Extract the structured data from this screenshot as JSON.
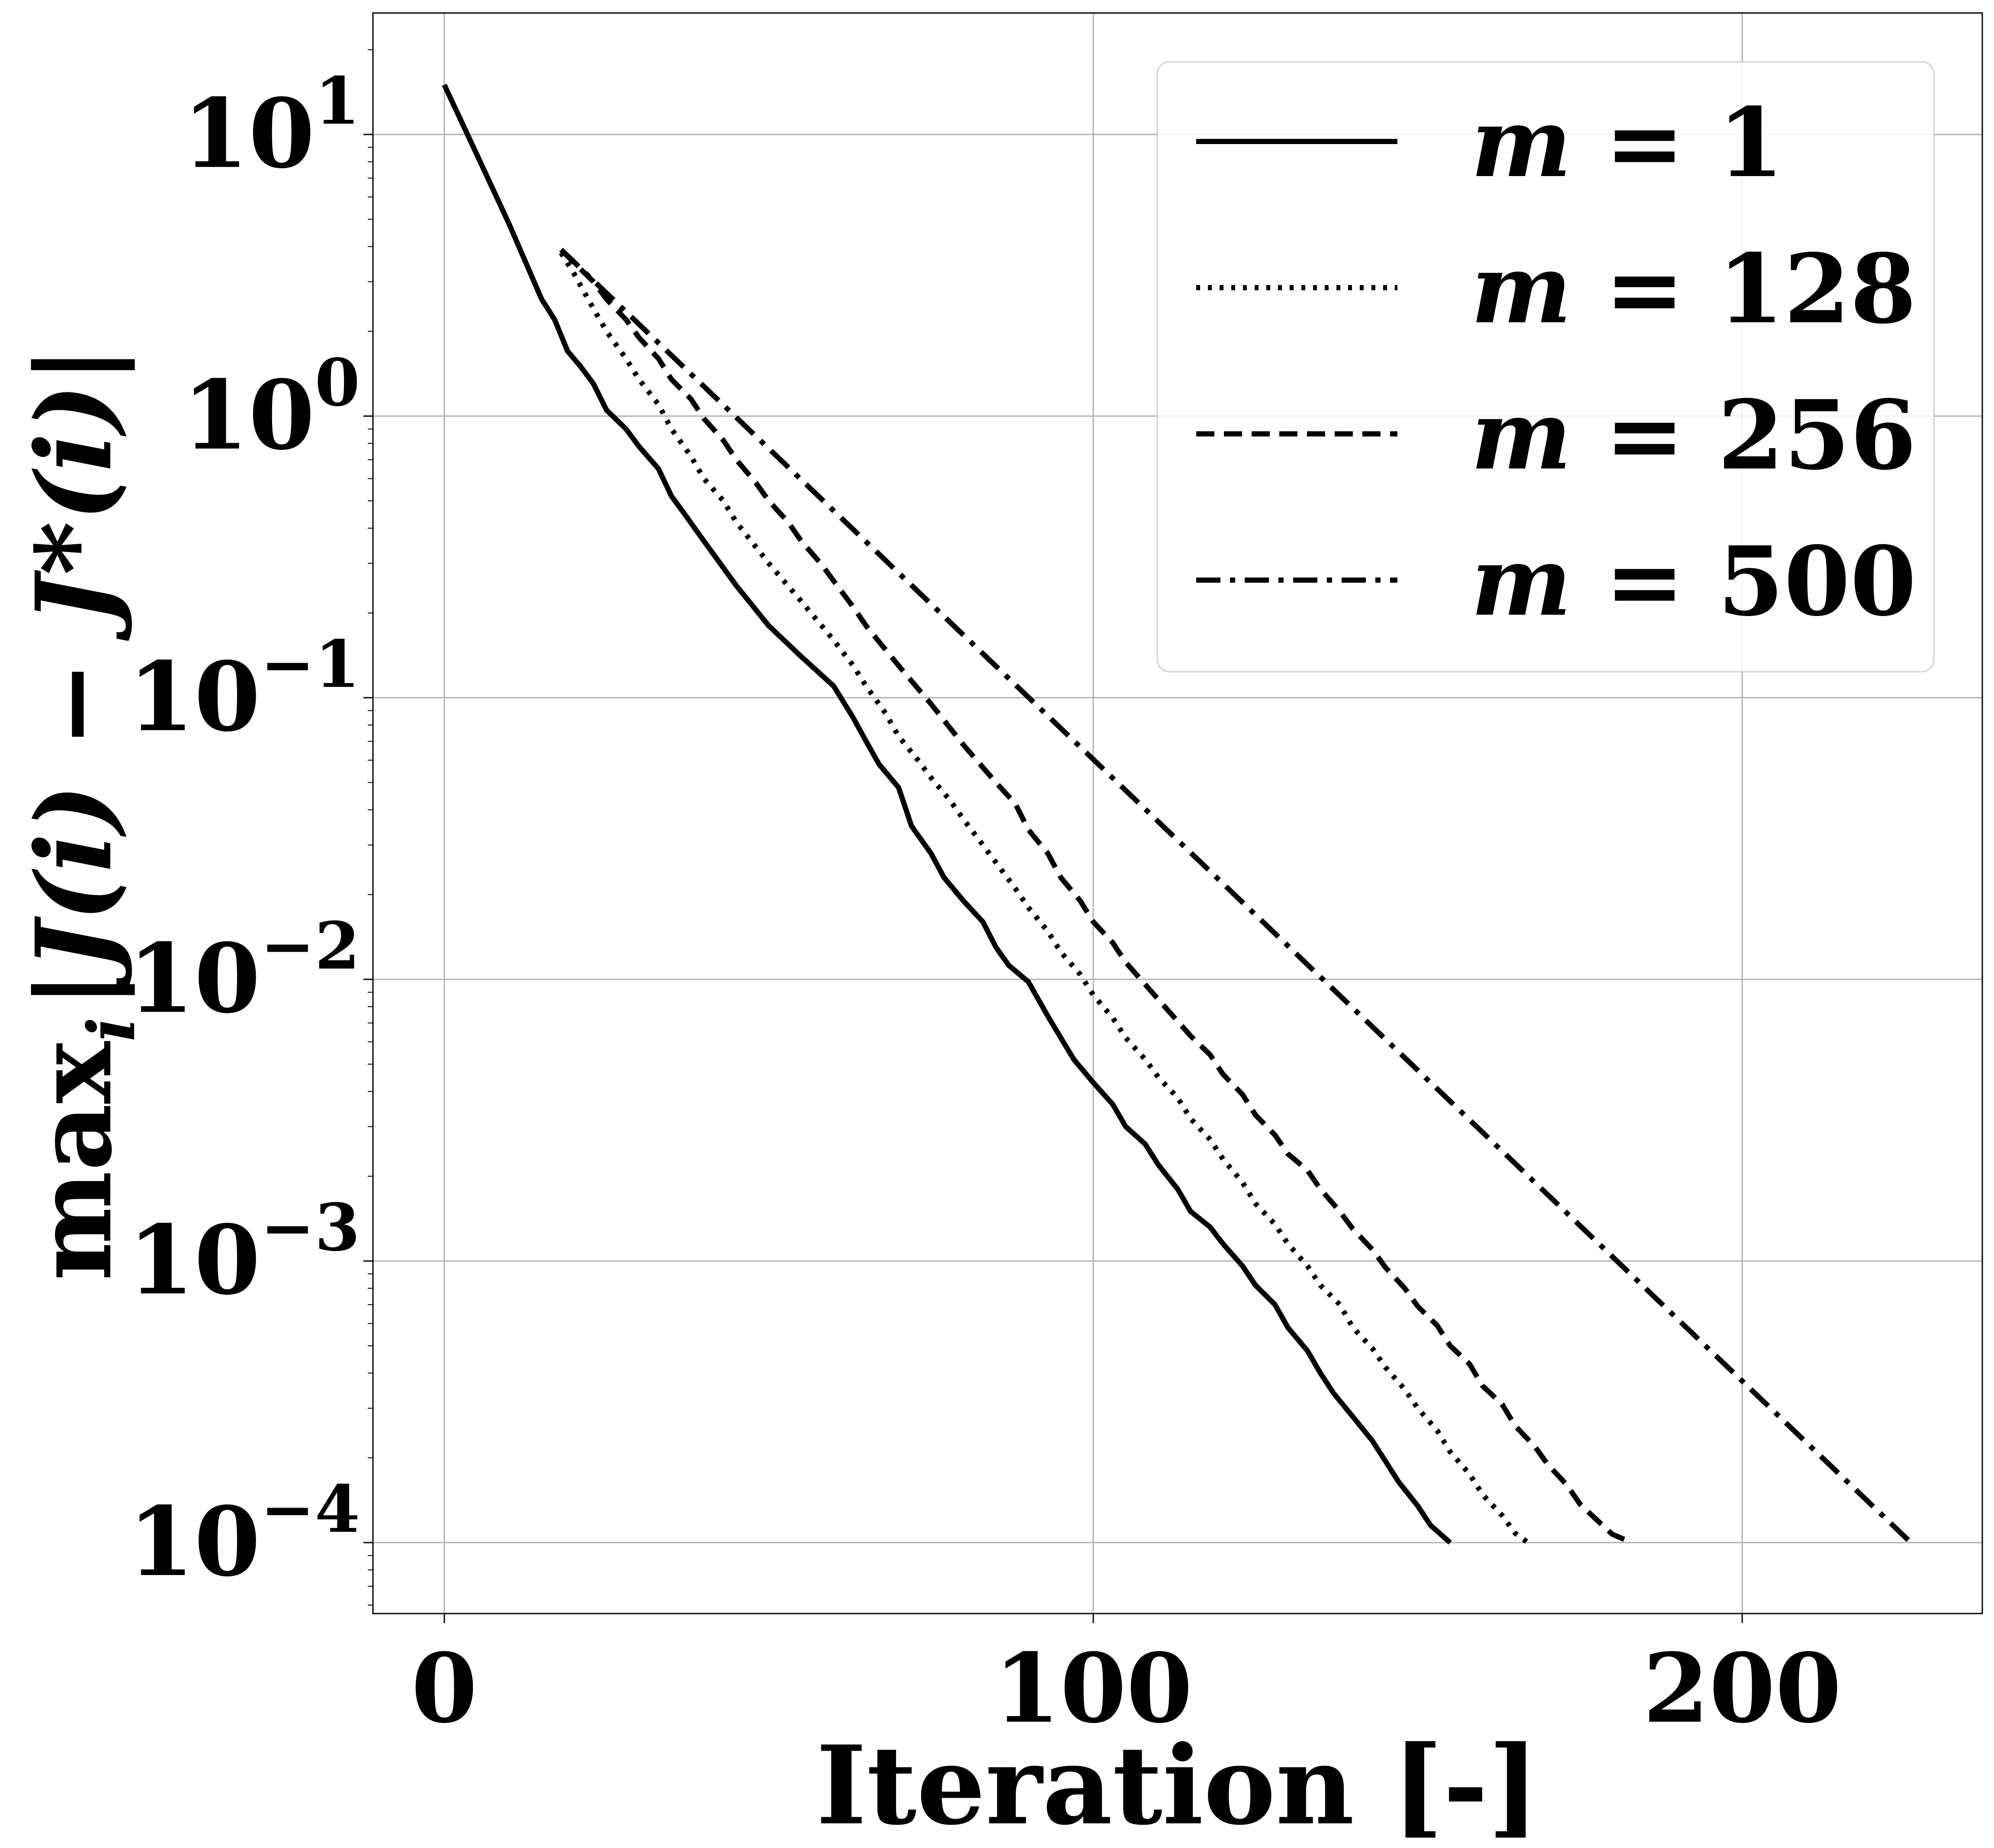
{
  "chart_data": {
    "type": "line",
    "xlabel": "Iteration [-]",
    "ylabel": "max_i |J(i) − J*(i)|",
    "ylabel_parts": {
      "prefix": "max",
      "sub": "i",
      "expr": "|J(i) − J*(i)|"
    },
    "x_range": [
      -11,
      237
    ],
    "y_scale": "log",
    "y_range": [
      5.6e-05,
      27
    ],
    "x_ticks": [
      {
        "value": 0,
        "label": "0"
      },
      {
        "value": 100,
        "label": "100"
      },
      {
        "value": 200,
        "label": "200"
      }
    ],
    "y_ticks": [
      {
        "value": 10,
        "base": "10",
        "exp": "1"
      },
      {
        "value": 1,
        "base": "10",
        "exp": "0"
      },
      {
        "value": 0.1,
        "base": "10",
        "exp": "−1"
      },
      {
        "value": 0.01,
        "base": "10",
        "exp": "−2"
      },
      {
        "value": 0.001,
        "base": "10",
        "exp": "−3"
      },
      {
        "value": 0.0001,
        "base": "10",
        "exp": "−4"
      }
    ],
    "grid": true,
    "legend_position": "top-right",
    "series": [
      {
        "name": "m = 1",
        "legend_var": "m",
        "legend_rest": " = 1",
        "style": "solid",
        "x": [
          0,
          5,
          10,
          15,
          17,
          19,
          21,
          23,
          25,
          28,
          30,
          33,
          35,
          37,
          40,
          45,
          50,
          55,
          60,
          63,
          65,
          67,
          70,
          72,
          75,
          77,
          80,
          83,
          85,
          87,
          90,
          93,
          95,
          97,
          100,
          103,
          105,
          108,
          110,
          113,
          115,
          118,
          120,
          123,
          125,
          128,
          130,
          133,
          135,
          137,
          140,
          143,
          145,
          147,
          150,
          152,
          155
        ],
        "y": [
          15,
          8.5,
          4.8,
          2.6,
          2.2,
          1.7,
          1.5,
          1.3,
          1.05,
          0.9,
          0.78,
          0.65,
          0.52,
          0.45,
          0.36,
          0.25,
          0.18,
          0.14,
          0.11,
          0.085,
          0.07,
          0.058,
          0.048,
          0.035,
          0.028,
          0.023,
          0.019,
          0.016,
          0.013,
          0.0112,
          0.0098,
          0.0074,
          0.0062,
          0.0052,
          0.0043,
          0.0036,
          0.003,
          0.0026,
          0.0022,
          0.0018,
          0.0015,
          0.00132,
          0.00115,
          0.00096,
          0.00082,
          0.0007,
          0.00058,
          0.00048,
          0.0004,
          0.00034,
          0.00028,
          0.00023,
          0.000195,
          0.000165,
          0.000135,
          0.000115,
          0.0001
        ]
      },
      {
        "name": "m = 128",
        "legend_var": "m",
        "legend_rest": " = 128",
        "style": "dotted",
        "x": [
          18,
          20,
          23,
          25,
          28,
          30,
          33,
          35,
          38,
          40,
          43,
          45,
          50,
          55,
          60,
          63,
          65,
          68,
          70,
          73,
          75,
          78,
          80,
          83,
          85,
          88,
          90,
          93,
          95,
          98,
          100,
          103,
          105,
          108,
          110,
          113,
          115,
          118,
          120,
          123,
          125,
          128,
          130,
          133,
          135,
          138,
          140,
          143,
          145,
          148,
          150,
          153,
          155,
          158,
          160,
          163,
          165,
          167
        ],
        "y": [
          3.8,
          3.2,
          2.4,
          2.0,
          1.6,
          1.35,
          1.1,
          0.9,
          0.72,
          0.6,
          0.5,
          0.42,
          0.3,
          0.22,
          0.16,
          0.13,
          0.11,
          0.088,
          0.073,
          0.06,
          0.052,
          0.043,
          0.037,
          0.03,
          0.026,
          0.021,
          0.018,
          0.0148,
          0.0125,
          0.0104,
          0.0088,
          0.0073,
          0.0062,
          0.0052,
          0.0045,
          0.0038,
          0.0032,
          0.0027,
          0.0023,
          0.0019,
          0.0016,
          0.00135,
          0.00115,
          0.00096,
          0.00082,
          0.0007,
          0.00058,
          0.00049,
          0.00042,
          0.00035,
          0.0003,
          0.00025,
          0.00021,
          0.000175,
          0.000148,
          0.000125,
          0.000108,
          0.0001
        ]
      },
      {
        "name": "m = 256",
        "legend_var": "m",
        "legend_rest": " = 256",
        "style": "dashed",
        "x": [
          18,
          20,
          23,
          25,
          28,
          30,
          33,
          35,
          38,
          40,
          43,
          45,
          48,
          50,
          53,
          55,
          58,
          60,
          63,
          65,
          70,
          75,
          80,
          85,
          88,
          90,
          93,
          95,
          98,
          100,
          103,
          105,
          110,
          115,
          118,
          120,
          123,
          125,
          128,
          130,
          133,
          135,
          138,
          140,
          143,
          145,
          148,
          150,
          153,
          155,
          158,
          160,
          163,
          165,
          168,
          170,
          173,
          175,
          178,
          180,
          183
        ],
        "y": [
          3.9,
          3.5,
          3.0,
          2.6,
          2.2,
          1.9,
          1.6,
          1.35,
          1.15,
          0.98,
          0.82,
          0.7,
          0.58,
          0.5,
          0.42,
          0.36,
          0.3,
          0.26,
          0.21,
          0.18,
          0.13,
          0.095,
          0.068,
          0.05,
          0.042,
          0.034,
          0.028,
          0.023,
          0.019,
          0.016,
          0.0135,
          0.0115,
          0.0085,
          0.0063,
          0.0054,
          0.0046,
          0.0039,
          0.0033,
          0.0028,
          0.0024,
          0.0021,
          0.0018,
          0.0015,
          0.0013,
          0.0011,
          0.00095,
          0.0008,
          0.00069,
          0.00059,
          0.0005,
          0.00043,
          0.00036,
          0.00031,
          0.00026,
          0.00022,
          0.00019,
          0.00016,
          0.000137,
          0.000118,
          0.000107,
          0.0001
        ]
      },
      {
        "name": "m = 500",
        "legend_var": "m",
        "legend_rest": " = 500",
        "style": "dashdot",
        "x": [
          18,
          226
        ],
        "y": [
          3.9,
          0.0001
        ]
      }
    ]
  }
}
